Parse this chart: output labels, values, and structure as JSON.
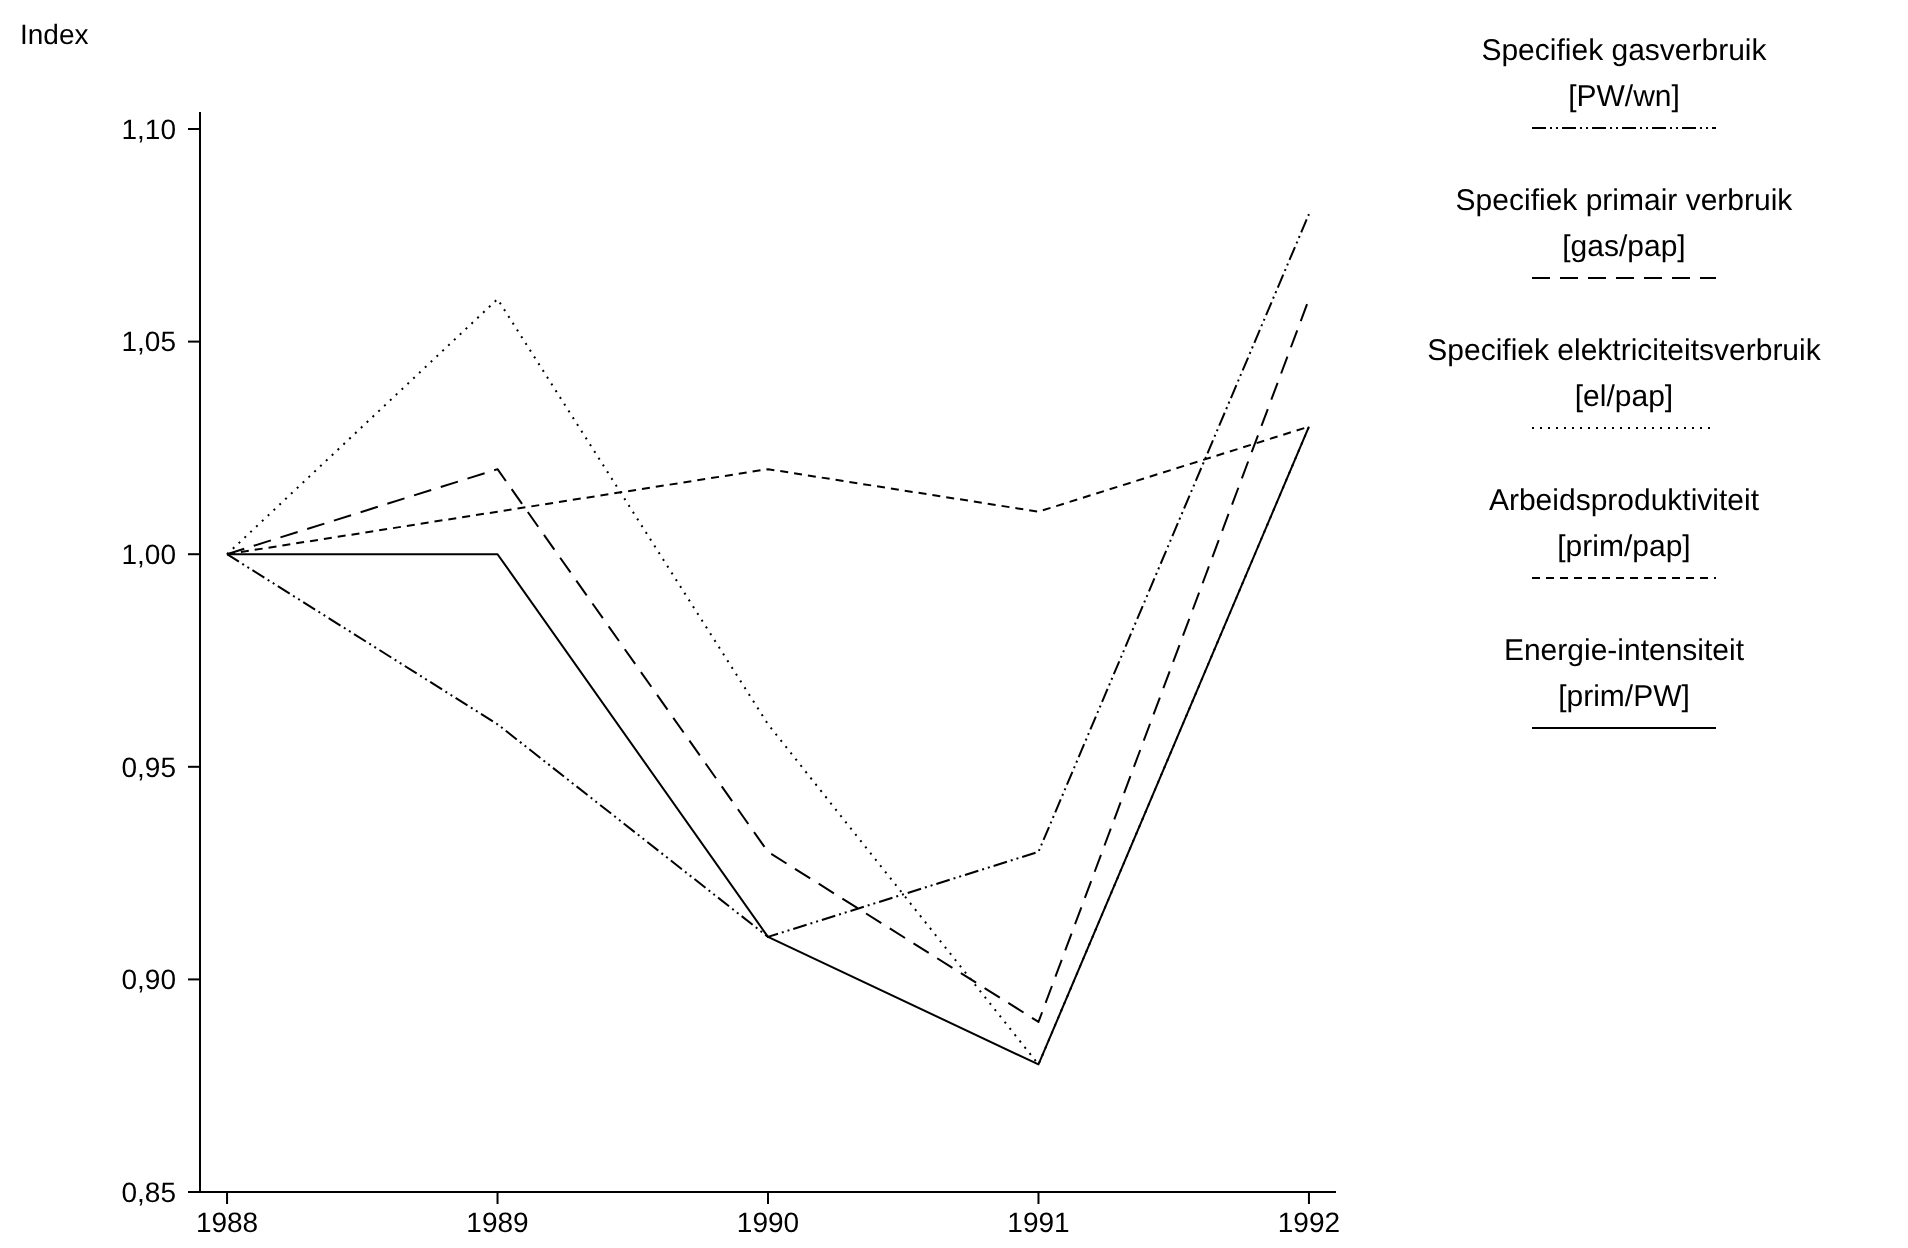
{
  "chart_data": {
    "type": "line",
    "ylabel": "Index",
    "x": [
      1988,
      1989,
      1990,
      1991,
      1992
    ],
    "xlim": [
      1987.9,
      1992.1
    ],
    "xticks": [
      1988,
      1989,
      1990,
      1991,
      1992
    ],
    "ylim": [
      0.85,
      1.104
    ],
    "yticks": [
      {
        "value": 0.85,
        "label": "0,85"
      },
      {
        "value": 0.9,
        "label": "0,90"
      },
      {
        "value": 0.95,
        "label": "0,95"
      },
      {
        "value": 1.0,
        "label": "1,00"
      },
      {
        "value": 1.05,
        "label": "1,05"
      },
      {
        "value": 1.1,
        "label": "1,10"
      }
    ],
    "grid": false,
    "legend": "top right",
    "marker": "none",
    "series": [
      {
        "name": "Specifiek gasverbruik\n[PW/wn]",
        "color": "#000000",
        "line_style": "dashdot",
        "values": [
          1.0,
          0.96,
          0.91,
          0.93,
          1.08
        ]
      },
      {
        "name": "Specifiek primair verbruik\n[gas/pap]",
        "color": "#000000",
        "line_style": "longdash",
        "values": [
          1.0,
          1.02,
          0.93,
          0.89,
          1.06
        ]
      },
      {
        "name": "Specifiek elektriciteitsverbruik\n[el/pap]",
        "color": "#000000",
        "line_style": "dotted",
        "values": [
          1.0,
          1.06,
          0.96,
          0.88,
          1.03
        ]
      },
      {
        "name": "Arbeidsproduktiviteit\n[prim/pap]",
        "color": "#000000",
        "line_style": "dashed",
        "values": [
          1.0,
          1.01,
          1.02,
          1.01,
          1.03
        ]
      },
      {
        "name": "Energie-intensiteit\n[prim/PW]",
        "color": "#000000",
        "line_style": "solid",
        "values": [
          1.0,
          1.0,
          0.91,
          0.88,
          1.03
        ]
      }
    ]
  }
}
